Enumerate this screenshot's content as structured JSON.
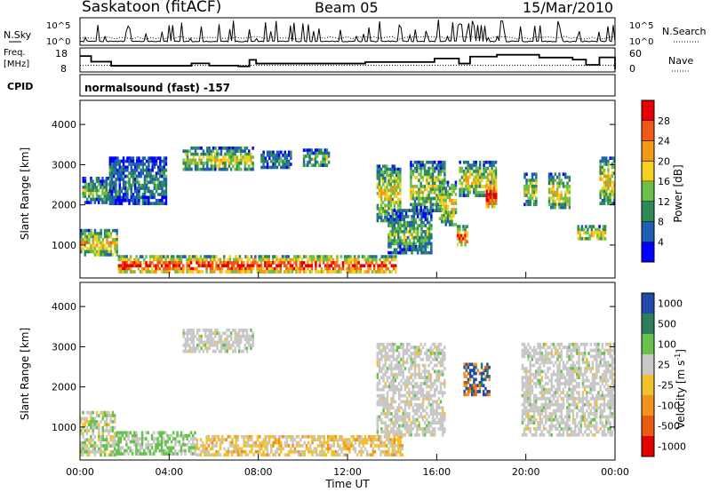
{
  "header": {
    "station": "Saskatoon (fitACF)",
    "beam": "Beam 05",
    "date": "15/Mar/2010"
  },
  "panels": {
    "nsky_label": "N.Sky",
    "nsearch_label": "N.Search",
    "freq_label_line1": "Freq.",
    "freq_label_line2": "[MHz]",
    "nave_label": "Nave",
    "cpid_label": "CPID",
    "cpid_value": "normalsound (fast) -157"
  },
  "chart_data": [
    {
      "type": "line",
      "panel": "noise",
      "series": [
        {
          "name": "N.Sky",
          "values": "log10 noise level, approx 10^0.2 with spikes up to 10^5"
        },
        {
          "name": "N.Search",
          "values": "dotted line"
        }
      ],
      "ylim_log10": [
        0,
        5
      ],
      "left_ticks": [
        "10^5",
        "10^0"
      ],
      "right_ticks": [
        "10^5",
        "10^0"
      ]
    },
    {
      "type": "line",
      "panel": "frequency",
      "left_ticks": [
        "18",
        "8"
      ],
      "right_ticks": [
        "60",
        "0"
      ],
      "freq_steps": [
        {
          "t": 0.0,
          "f": 16.5
        },
        {
          "t": 0.5,
          "f": 13.5
        },
        {
          "t": 1.4,
          "f": 11.3
        },
        {
          "t": 5.0,
          "f": 12.6
        },
        {
          "t": 5.8,
          "f": 11.4
        },
        {
          "t": 7.1,
          "f": 11.0
        },
        {
          "t": 7.6,
          "f": 14.5
        },
        {
          "t": 7.9,
          "f": 12.5
        },
        {
          "t": 12.8,
          "f": 13.3
        },
        {
          "t": 15.9,
          "f": 15.2
        },
        {
          "t": 17.0,
          "f": 12.5
        },
        {
          "t": 17.5,
          "f": 16.2
        },
        {
          "t": 18.7,
          "f": 17.2
        },
        {
          "t": 20.6,
          "f": 15.7
        },
        {
          "t": 22.1,
          "f": 14.6
        },
        {
          "t": 22.7,
          "f": 11.8
        },
        {
          "t": 23.3,
          "f": 15.8
        },
        {
          "t": 24.0,
          "f": 9.5
        }
      ],
      "nave_level": 11.5
    },
    {
      "type": "heatmap",
      "panel": "power",
      "xlabel": "",
      "ylabel": "Slant Range [km]",
      "xlim_hours": [
        0,
        24
      ],
      "ylim_km": [
        180,
        4600
      ],
      "yticks": [
        1000,
        2000,
        3000,
        4000
      ],
      "colorbar": {
        "label": "Power [dB]",
        "ticks": [
          4,
          8,
          12,
          16,
          20,
          24,
          28
        ],
        "range": [
          0,
          32
        ]
      },
      "echo_regions": [
        {
          "t0": 0.0,
          "t1": 1.7,
          "r0": 700,
          "r1": 1400,
          "level": 0.55
        },
        {
          "t0": 0.1,
          "t1": 1.4,
          "r0": 2000,
          "r1": 2700,
          "level": 0.35
        },
        {
          "t0": 1.3,
          "t1": 3.9,
          "r0": 2000,
          "r1": 3200,
          "level": 0.25
        },
        {
          "t0": 1.7,
          "t1": 14.2,
          "r0": 300,
          "r1": 750,
          "level": 0.8
        },
        {
          "t0": 4.6,
          "t1": 7.8,
          "r0": 2850,
          "r1": 3450,
          "level": 0.45
        },
        {
          "t0": 8.1,
          "t1": 9.5,
          "r0": 2900,
          "r1": 3350,
          "level": 0.25
        },
        {
          "t0": 10.0,
          "t1": 11.2,
          "r0": 2950,
          "r1": 3400,
          "level": 0.35
        },
        {
          "t0": 13.3,
          "t1": 14.4,
          "r0": 1600,
          "r1": 3000,
          "level": 0.5
        },
        {
          "t0": 13.8,
          "t1": 15.8,
          "r0": 800,
          "r1": 1900,
          "level": 0.35
        },
        {
          "t0": 14.8,
          "t1": 16.4,
          "r0": 1800,
          "r1": 3100,
          "level": 0.45
        },
        {
          "t0": 16.1,
          "t1": 16.9,
          "r0": 1500,
          "r1": 2600,
          "level": 0.5
        },
        {
          "t0": 16.9,
          "t1": 17.4,
          "r0": 1000,
          "r1": 1500,
          "level": 0.7
        },
        {
          "t0": 17.0,
          "t1": 18.7,
          "r0": 2200,
          "r1": 3100,
          "level": 0.5
        },
        {
          "t0": 18.2,
          "t1": 18.7,
          "r0": 1900,
          "r1": 2600,
          "level": 0.85
        },
        {
          "t0": 19.9,
          "t1": 20.5,
          "r0": 2000,
          "r1": 2800,
          "level": 0.45
        },
        {
          "t0": 21.0,
          "t1": 22.0,
          "r0": 1900,
          "r1": 2800,
          "level": 0.5
        },
        {
          "t0": 22.3,
          "t1": 23.6,
          "r0": 1100,
          "r1": 1500,
          "level": 0.55
        },
        {
          "t0": 23.3,
          "t1": 24.0,
          "r0": 2000,
          "r1": 3200,
          "level": 0.5
        }
      ]
    },
    {
      "type": "heatmap",
      "panel": "velocity",
      "xlabel": "Time UT",
      "ylabel": "Slant Range [km]",
      "xlim_hours": [
        0,
        24
      ],
      "ylim_km": [
        180,
        4600
      ],
      "xticks": [
        "00:00",
        "04:00",
        "08:00",
        "12:00",
        "16:00",
        "20:00",
        "00:00"
      ],
      "yticks": [
        1000,
        2000,
        3000,
        4000
      ],
      "colorbar": {
        "label": "Velocity [m s-1]",
        "ticks": [
          "1000",
          "500",
          "100",
          "25",
          "-25",
          "-100",
          "-500",
          "-1000"
        ]
      },
      "echo_regions": [
        {
          "t0": 0.0,
          "t1": 1.6,
          "r0": 300,
          "r1": 1400,
          "vel": "mixed"
        },
        {
          "t0": 1.6,
          "t1": 5.2,
          "r0": 300,
          "r1": 900,
          "vel": "positive"
        },
        {
          "t0": 4.6,
          "t1": 7.8,
          "r0": 2850,
          "r1": 3450,
          "vel": "low"
        },
        {
          "t0": 5.2,
          "t1": 14.5,
          "r0": 300,
          "r1": 800,
          "vel": "negative"
        },
        {
          "t0": 13.3,
          "t1": 16.4,
          "r0": 800,
          "r1": 3100,
          "vel": "low"
        },
        {
          "t0": 17.2,
          "t1": 18.4,
          "r0": 1800,
          "r1": 2600,
          "vel": "strong"
        },
        {
          "t0": 19.8,
          "t1": 24.0,
          "r0": 800,
          "r1": 3100,
          "vel": "low"
        }
      ]
    }
  ],
  "colors": {
    "power_scale": [
      "#0000ff",
      "#1e5fb4",
      "#2e8b57",
      "#6cc04a",
      "#f5d020",
      "#f29a16",
      "#f05a14",
      "#e60000"
    ],
    "velocity_scale": [
      "#1f4aa8",
      "#2e7d5c",
      "#66c24a",
      "#c8c8c8",
      "#f2c12e",
      "#f2921f",
      "#ea5a12",
      "#e00000"
    ]
  }
}
